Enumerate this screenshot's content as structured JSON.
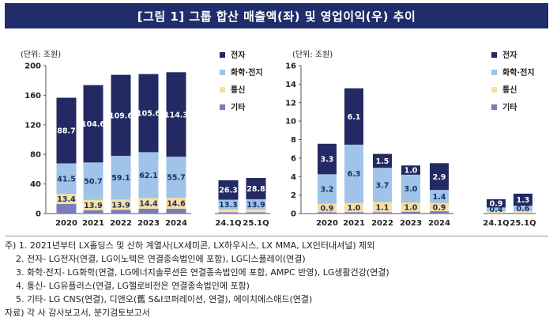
{
  "title": "[그림 1] 그룹 합산 매출액(좌) 및 영업이익(우) 추이",
  "colors": {
    "elec": "#232a63",
    "chem": "#9fc4e8",
    "tel": "#f7df9c",
    "other": "#7b7bbd",
    "title_bg": "#1f2d6b"
  },
  "chart_data": [
    {
      "type": "bar",
      "title": "매출액",
      "unit_label": "(단위: 조원)",
      "categories": [
        "2020",
        "2021",
        "2022",
        "2023",
        "2024",
        "24.1Q",
        "25.1Q"
      ],
      "ylim": [
        0,
        200
      ],
      "yticks": [
        "0",
        "40",
        "80",
        "120",
        "160",
        "200"
      ],
      "legend": [
        "전자",
        "화학·전지",
        "통신",
        "기타"
      ],
      "series": [
        {
          "name": "기타",
          "color_key": "other",
          "values": [
            13.0,
            4.5,
            5.0,
            6.5,
            6.5,
            1.7,
            1.7
          ],
          "labels": [
            "",
            "",
            "",
            "",
            "",
            "",
            ""
          ]
        },
        {
          "name": "통신",
          "color_key": "tel",
          "values": [
            13.4,
            13.9,
            13.9,
            14.4,
            14.6,
            3.7,
            3.7
          ],
          "labels": [
            "13.4",
            "13.9",
            "13.9",
            "14.4",
            "14.6",
            "",
            ""
          ]
        },
        {
          "name": "화학·전지",
          "color_key": "chem",
          "values": [
            41.5,
            50.7,
            59.1,
            62.1,
            55.7,
            13.3,
            13.9
          ],
          "labels": [
            "41.5",
            "50.7",
            "59.1",
            "62.1",
            "55.7",
            "13.3",
            "13.9"
          ]
        },
        {
          "name": "전자",
          "color_key": "elec",
          "values": [
            88.7,
            104.6,
            109.6,
            105.6,
            114.3,
            26.3,
            28.8
          ],
          "labels": [
            "88.7",
            "104.6",
            "109.6",
            "105.6",
            "114.3",
            "26.3",
            "28.8"
          ]
        }
      ]
    },
    {
      "type": "bar",
      "title": "영업이익",
      "unit_label": "(단위: 조원)",
      "categories": [
        "2020",
        "2021",
        "2022",
        "2023",
        "2024",
        "24.1Q",
        "25.1Q"
      ],
      "ylim": [
        0,
        16
      ],
      "yticks": [
        "0",
        "2",
        "4",
        "6",
        "8",
        "10",
        "12",
        "14",
        "16"
      ],
      "legend": [
        "전자",
        "화학·전지",
        "통신",
        "기타"
      ],
      "series": [
        {
          "name": "기타",
          "color_key": "other",
          "values": [
            0.15,
            0.15,
            0.15,
            0.2,
            0.25,
            0.05,
            0.05
          ],
          "labels": [
            "",
            "",
            "",
            "",
            "",
            "",
            ""
          ]
        },
        {
          "name": "통신",
          "color_key": "tel",
          "values": [
            0.9,
            1.0,
            1.1,
            1.0,
            0.9,
            0.2,
            0.2
          ],
          "labels": [
            "0.9",
            "1.0",
            "1.1",
            "1.0",
            "0.9",
            "",
            ""
          ]
        },
        {
          "name": "화학·전지",
          "color_key": "chem",
          "values": [
            3.2,
            6.3,
            3.7,
            3.0,
            1.4,
            0.4,
            0.6
          ],
          "labels": [
            "3.2",
            "6.3",
            "3.7",
            "3.0",
            "1.4",
            "0.4",
            "0.6"
          ]
        },
        {
          "name": "전자",
          "color_key": "elec",
          "values": [
            3.3,
            6.1,
            1.5,
            1.0,
            2.9,
            0.9,
            1.3
          ],
          "labels": [
            "3.3",
            "6.1",
            "1.5",
            "1.0",
            "2.9",
            "0.9",
            "1.3"
          ]
        }
      ]
    }
  ],
  "notes": [
    "주) 1. 2021년부터 LX홀딩스 및 산하 계열사(LX세미콘, LX하우시스, LX MMA, LX인터내셔널) 제외",
    "2. 전자- LG전자(연결, LG이노텍은 연결종속법인에 포함), LG디스플레이(연결)",
    "3. 화학·전지- LG화학(연결, LG에너지솔루션은 연결종속법인에 포함, AMPC 반영), LG생활건강(연결)",
    "4. 통신- LG유플러스(연결, LG헬로비전은 연결종속법인에 포함)",
    "5. 기타- LG CNS(연결), 디앤오(舊 S&I코퍼레이션, 연결), 에이치에스애드(연결)",
    "자료) 각 사 감사보고서, 분기검토보고서"
  ]
}
